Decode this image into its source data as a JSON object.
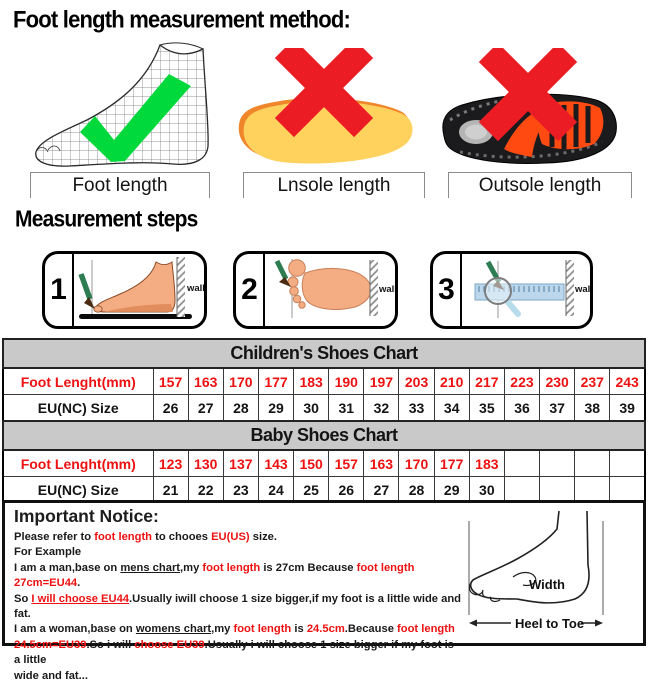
{
  "header": {
    "title": "Foot length measurement method:"
  },
  "figures": [
    {
      "label": "Foot length",
      "mark": "check"
    },
    {
      "label": "Lnsole length",
      "mark": "cross"
    },
    {
      "label": "Outsole length",
      "mark": "cross"
    }
  ],
  "steps_section": {
    "title": "Measurement steps",
    "steps": [
      {
        "number": "1",
        "wall_label": "wall"
      },
      {
        "number": "2",
        "wall_label": "wall"
      },
      {
        "number": "3",
        "wall_label": "wall"
      }
    ]
  },
  "charts": [
    {
      "title": "Children's Shoes Chart",
      "row1_label": "Foot Lenght(mm)",
      "row1_values": [
        "157",
        "163",
        "170",
        "177",
        "183",
        "190",
        "197",
        "203",
        "210",
        "217",
        "223",
        "230",
        "237",
        "243"
      ],
      "row2_label": "EU(NC) Size",
      "row2_values": [
        "26",
        "27",
        "28",
        "29",
        "30",
        "31",
        "32",
        "33",
        "34",
        "35",
        "36",
        "37",
        "38",
        "39"
      ]
    },
    {
      "title": "Baby Shoes Chart",
      "row1_label": "Foot Lenght(mm)",
      "row1_values": [
        "123",
        "130",
        "137",
        "143",
        "150",
        "157",
        "163",
        "170",
        "177",
        "183",
        "",
        "",
        "",
        ""
      ],
      "row2_label": "EU(NC) Size",
      "row2_values": [
        "21",
        "22",
        "23",
        "24",
        "25",
        "26",
        "27",
        "28",
        "29",
        "30",
        "",
        "",
        "",
        ""
      ]
    }
  ],
  "notice": {
    "title": "Important Notice:",
    "lines": [
      [
        {
          "t": "Please refer to "
        },
        {
          "t": "foot length",
          "red": 1
        },
        {
          "t": " to chooes "
        },
        {
          "t": "EU(US)",
          "red": 1
        },
        {
          "t": " size."
        }
      ],
      [
        {
          "t": "For Example"
        }
      ],
      [
        {
          "t": "I am a man,base on "
        },
        {
          "t": "mens chart",
          "u": 1
        },
        {
          "t": ",my "
        },
        {
          "t": "foot length",
          "red": 1
        },
        {
          "t": " is 27cm Because "
        },
        {
          "t": "foot length 27cm=EU44",
          "red": 1
        },
        {
          "t": "."
        }
      ],
      [
        {
          "t": "So "
        },
        {
          "t": "I will choose EU44",
          "red": 1,
          "u": 1
        },
        {
          "t": ".Usually iwill choose 1 size bigger,if my foot is a little wide and fat."
        }
      ],
      [
        {
          "t": "I am a woman,base on "
        },
        {
          "t": "womens chart",
          "u": 1
        },
        {
          "t": ",my "
        },
        {
          "t": "foot length",
          "red": 1
        },
        {
          "t": " is "
        },
        {
          "t": "24.5cm",
          "red": 1
        },
        {
          "t": ".Because "
        },
        {
          "t": "foot length",
          "red": 1
        }
      ],
      [
        {
          "t": "24.5cm=EU39",
          "red": 1
        },
        {
          "t": ".So i will "
        },
        {
          "t": "choose EU39",
          "red": 1
        },
        {
          "t": ".Usually i will choose 1 size bigger if my foot is a little"
        }
      ],
      [
        {
          "t": "wide and fat..."
        }
      ]
    ],
    "diagram": {
      "width_label": "Width",
      "length_label": "Heel to Toe"
    }
  },
  "colors": {
    "accent_red_text": "#ee1111",
    "cross_red": "#ec1c24",
    "check_green": "#00d93c",
    "table_header_bg": "#c9c9c9",
    "insole_yellow": "#ffd25e",
    "insole_edge_orange": "#f0862b",
    "skin": "#f4ac82",
    "ruler_blue": "#bcd7ec",
    "outsole_orange": "#ff4a12"
  }
}
